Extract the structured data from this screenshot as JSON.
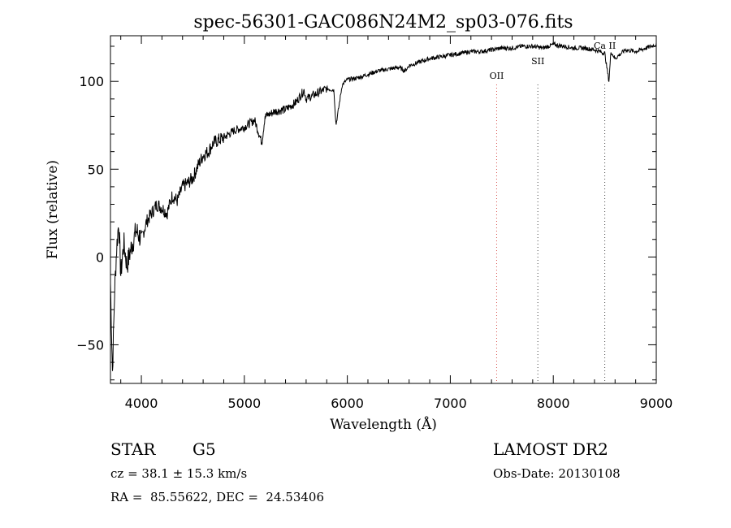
{
  "chart_data": {
    "type": "line",
    "title": "spec-56301-GAC086N24M2_sp03-076.fits",
    "xlabel": "Wavelength (Å)",
    "ylabel": "Flux (relative)",
    "xlim": [
      3700,
      9000
    ],
    "ylim": [
      -72,
      126
    ],
    "x_ticks": [
      4000,
      5000,
      6000,
      7000,
      8000,
      9000
    ],
    "y_ticks": [
      -50,
      0,
      50,
      100
    ],
    "grid": false,
    "series": [
      {
        "color": "#000000",
        "x": [
          3700,
          3720,
          3740,
          3760,
          3780,
          3800,
          3830,
          3860,
          3900,
          3950,
          4000,
          4050,
          4100,
          4150,
          4200,
          4250,
          4300,
          4350,
          4400,
          4450,
          4500,
          4550,
          4600,
          4650,
          4700,
          4800,
          4900,
          5000,
          5100,
          5170,
          5200,
          5300,
          5400,
          5500,
          5580,
          5600,
          5700,
          5800,
          5870,
          5890,
          5950,
          6000,
          6100,
          6200,
          6300,
          6400,
          6500,
          6560,
          6600,
          6700,
          6800,
          6900,
          7000,
          7100,
          7200,
          7300,
          7400,
          7500,
          7600,
          7700,
          7800,
          7900,
          8000,
          8100,
          8200,
          8300,
          8400,
          8500,
          8540,
          8560,
          8600,
          8700,
          8800,
          8900,
          9000
        ],
        "values": [
          -15,
          -65,
          -20,
          5,
          20,
          -10,
          8,
          -5,
          5,
          15,
          10,
          20,
          25,
          30,
          28,
          25,
          35,
          32,
          40,
          42,
          45,
          52,
          58,
          60,
          65,
          68,
          72,
          74,
          78,
          65,
          80,
          83,
          84,
          88,
          95,
          90,
          93,
          96,
          95,
          75,
          98,
          101,
          102,
          104,
          106,
          107,
          108,
          106,
          109,
          111,
          113,
          114,
          115,
          116,
          117,
          117,
          118,
          119,
          119,
          120,
          120,
          119,
          121,
          120,
          119,
          119,
          118,
          116,
          100,
          117,
          113,
          118,
          117,
          119,
          121
        ]
      }
    ],
    "annotations": [
      {
        "label": "OII",
        "x": 7450,
        "line_color": "#d9534f"
      },
      {
        "label": "SII",
        "x": 7850,
        "line_color": "#444444"
      },
      {
        "label": "Ca II",
        "x": 8500,
        "line_color": "#444444"
      }
    ]
  },
  "info": {
    "class_label": "STAR",
    "subclass_label": "G5",
    "redshift_text": "cz = 38.1 ± 15.3 km/s",
    "coords_text": "RA =  85.55622, DEC =  24.53406",
    "survey_label": "LAMOST DR2",
    "obs_date_text": "Obs-Date: 20130108"
  }
}
